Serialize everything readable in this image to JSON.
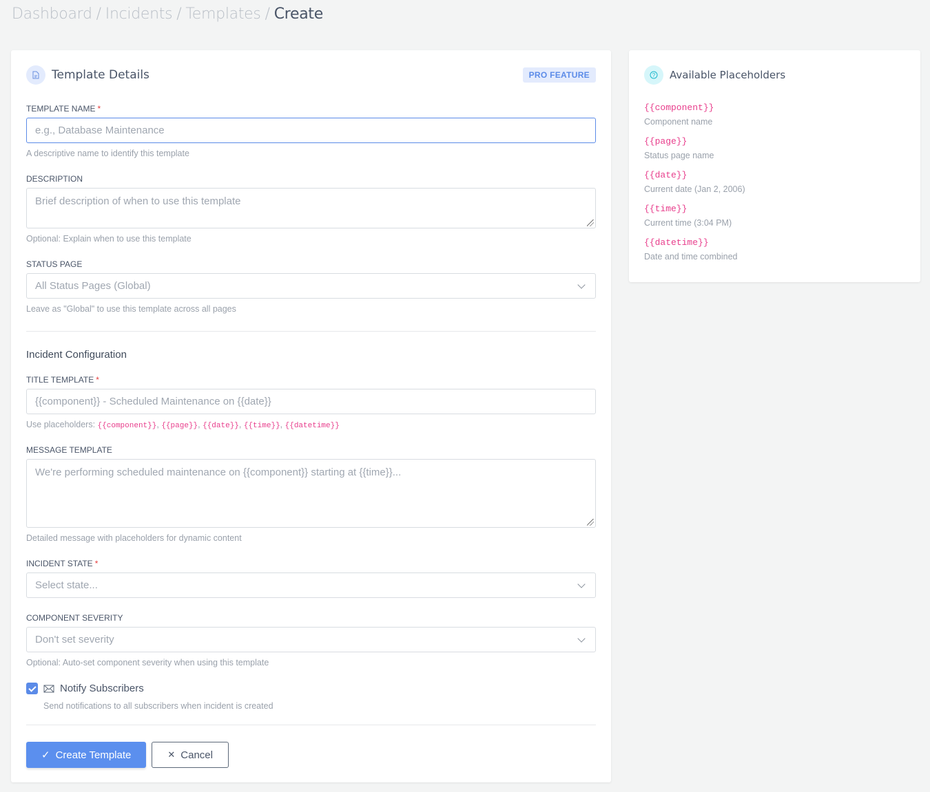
{
  "breadcrumb": [
    "Dashboard",
    "Incidents",
    "Templates",
    "Create"
  ],
  "details": {
    "title": "Template Details",
    "icon": "document-icon",
    "badge": "PRO FEATURE",
    "name": {
      "label": "TEMPLATE NAME",
      "placeholder": "e.g., Database Maintenance",
      "help": "A descriptive name to identify this template"
    },
    "description": {
      "label": "DESCRIPTION",
      "placeholder": "Brief description of when to use this template",
      "help": "Optional: Explain when to use this template"
    },
    "status_page": {
      "label": "STATUS PAGE",
      "value": "All Status Pages (Global)",
      "help": "Leave as \"Global\" to use this template across all pages"
    },
    "section": "Incident Configuration",
    "title_template": {
      "label": "TITLE TEMPLATE",
      "placeholder": "{{component}} - Scheduled Maintenance on {{date}}",
      "help_prefix": "Use placeholders:",
      "placeholders": [
        "{{component}}",
        "{{page}}",
        "{{date}}",
        "{{time}}",
        "{{datetime}}"
      ]
    },
    "message_template": {
      "label": "MESSAGE TEMPLATE",
      "placeholder": "We're performing scheduled maintenance on {{component}} starting at {{time}}...",
      "help": "Detailed message with placeholders for dynamic content"
    },
    "incident_state": {
      "label": "INCIDENT STATE",
      "value": "Select state..."
    },
    "severity": {
      "label": "COMPONENT SEVERITY",
      "value": "Don't set severity",
      "help": "Optional: Auto-set component severity when using this template"
    },
    "notify": {
      "label": "Notify Subscribers",
      "checked": true,
      "help": "Send notifications to all subscribers when incident is created"
    },
    "create_label": "Create Template",
    "cancel_label": "Cancel"
  },
  "placeholders": {
    "title": "Available Placeholders",
    "icon": "question-icon",
    "items": [
      {
        "code": "{{component}}",
        "desc": "Component name"
      },
      {
        "code": "{{page}}",
        "desc": "Status page name"
      },
      {
        "code": "{{date}}",
        "desc": "Current date (Jan 2, 2006)"
      },
      {
        "code": "{{time}}",
        "desc": "Current time (3:04 PM)"
      },
      {
        "code": "{{datetime}}",
        "desc": "Date and time combined"
      }
    ]
  },
  "colors": {
    "accent": "#5b8fee",
    "code": "#e83e8c",
    "required": "#e53e3e"
  }
}
